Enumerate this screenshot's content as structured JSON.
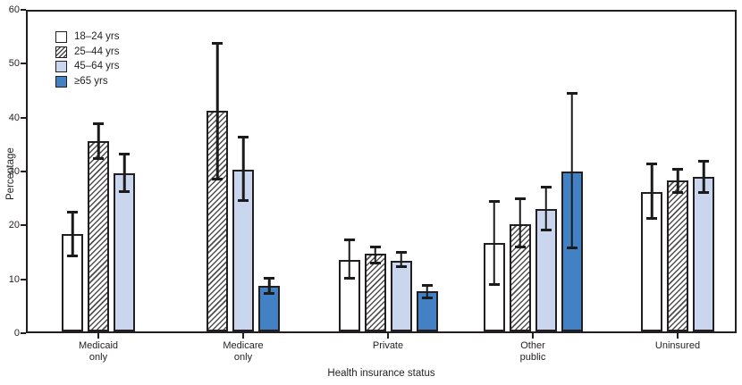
{
  "colors": {
    "axis": "#231f20",
    "bar_border": "#231f20",
    "hatch_line": "#4f4f4f",
    "age_45_64_fill": "#c9d6ee",
    "age_65_plus_fill": "#4181c4",
    "error_bar": "#1b1b1b",
    "text": "#231f20",
    "background": "#ffffff"
  },
  "legend": {
    "items": [
      {
        "label": "18–24 yrs",
        "style": "white"
      },
      {
        "label": "25–44 yrs",
        "style": "hatched"
      },
      {
        "label": "45–64 yrs",
        "style": "lightblue"
      },
      {
        "label": "≥65 yrs",
        "style": "blue"
      }
    ]
  },
  "chart_data": {
    "type": "bar",
    "xlabel": "Health insurance status",
    "ylabel": "Percentage",
    "ylim": [
      0,
      60
    ],
    "yticks": [
      0,
      10,
      20,
      30,
      40,
      50,
      60
    ],
    "grid": false,
    "legend_position": "top-left",
    "error_bars": true,
    "categories": [
      "Medicaid\nonly",
      "Medicare\nonly",
      "Private",
      "Other\npublic",
      "Uninsured"
    ],
    "series": [
      {
        "name": "18–24 yrs",
        "style": "white",
        "fill": "#ffffff",
        "values": [
          18.2,
          null,
          13.4,
          16.6,
          26.2
        ],
        "ci_low": [
          14.2,
          null,
          9.9,
          8.8,
          21.2
        ],
        "ci_high": [
          22.3,
          null,
          17.1,
          24.4,
          31.4
        ]
      },
      {
        "name": "25–44 yrs",
        "style": "hatched",
        "fill": "hatch-diagonal",
        "values": [
          35.7,
          41.4,
          14.6,
          20.1,
          28.4
        ],
        "ci_low": [
          32.5,
          28.6,
          12.8,
          15.9,
          26.0
        ],
        "ci_high": [
          38.9,
          54.1,
          15.8,
          24.9,
          30.5
        ]
      },
      {
        "name": "45–64 yrs",
        "style": "lightblue",
        "fill": "#c9d6ee",
        "values": [
          29.7,
          30.3,
          13.3,
          23.0,
          29.0
        ],
        "ci_low": [
          26.2,
          24.6,
          12.1,
          19.0,
          26.1
        ],
        "ci_high": [
          33.3,
          36.5,
          14.9,
          27.1,
          31.9
        ]
      },
      {
        "name": "≥65 yrs",
        "style": "blue",
        "fill": "#4181c4",
        "values": [
          null,
          8.6,
          7.5,
          30.0,
          null
        ],
        "ci_low": [
          null,
          7.2,
          6.3,
          15.7,
          null
        ],
        "ci_high": [
          null,
          9.9,
          8.7,
          44.7,
          null
        ]
      }
    ]
  }
}
